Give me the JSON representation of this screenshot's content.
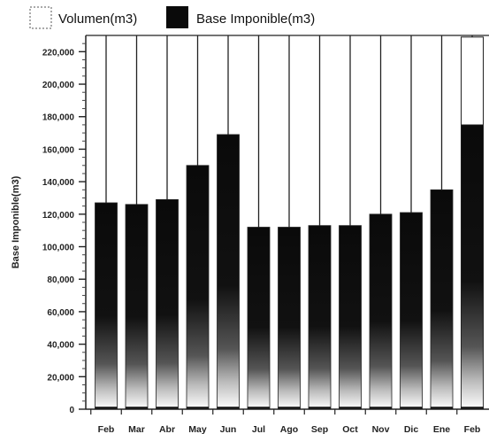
{
  "chart_data": {
    "type": "bar",
    "categories": [
      "Feb",
      "Mar",
      "Abr",
      "May",
      "Jun",
      "Jul",
      "Ago",
      "Sep",
      "Oct",
      "Nov",
      "Dic",
      "Ene",
      "Feb"
    ],
    "series": [
      {
        "name": "Volumen(m3)",
        "values": [
          null,
          null,
          null,
          null,
          null,
          null,
          null,
          null,
          null,
          null,
          null,
          null,
          229000
        ]
      },
      {
        "name": "Base Imponible(m3)",
        "values": [
          127000,
          126000,
          129000,
          150000,
          169000,
          112000,
          112000,
          113000,
          113000,
          120000,
          121000,
          135000,
          175000
        ]
      }
    ],
    "title": "",
    "xlabel": "",
    "ylabel": "Base Imponible(m3)",
    "ylim": [
      0,
      230000
    ],
    "yticks": [
      0,
      20000,
      40000,
      60000,
      80000,
      100000,
      120000,
      140000,
      160000,
      180000,
      200000,
      220000
    ],
    "ytick_labels": [
      "0",
      "20,000",
      "40,000",
      "60,000",
      "80,000",
      "100,000",
      "120,000",
      "140,000",
      "160,000",
      "180,000",
      "200,000",
      "220,000"
    ],
    "legend": "top-left",
    "grid": false,
    "colors": {
      "volumen": "#ffffff",
      "base": "#0a0a0a",
      "outline": "#222222"
    }
  }
}
